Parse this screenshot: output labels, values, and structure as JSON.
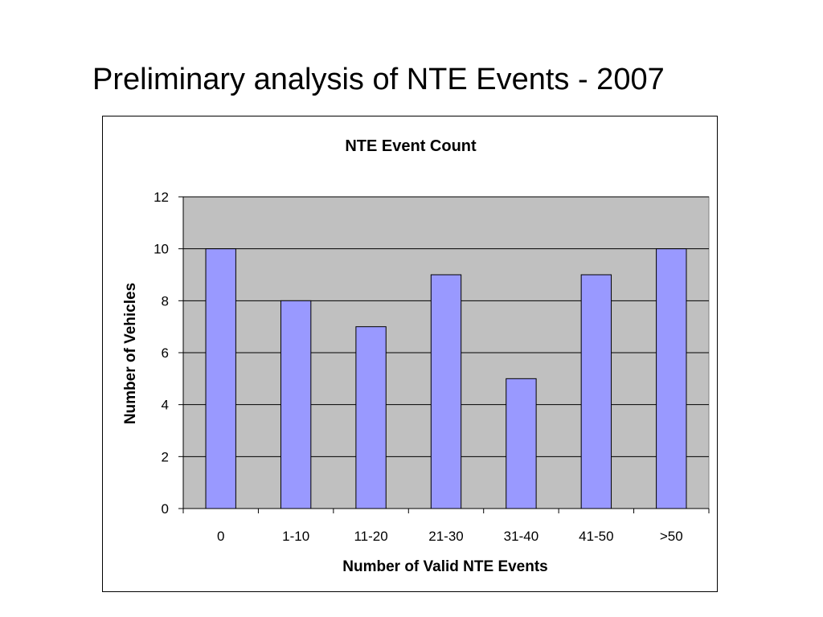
{
  "slide": {
    "title": "Preliminary analysis of NTE Events - 2007"
  },
  "chart_data": {
    "type": "bar",
    "title": "NTE Event Count",
    "xlabel": "Number of Valid NTE Events",
    "ylabel": "Number of Vehicles",
    "categories": [
      "0",
      "1-10",
      "11-20",
      "21-30",
      "31-40",
      "41-50",
      ">50"
    ],
    "values": [
      10,
      8,
      7,
      9,
      5,
      9,
      10
    ],
    "ylim": [
      0,
      12
    ],
    "yticks": [
      0,
      2,
      4,
      6,
      8,
      10,
      12
    ],
    "grid": true,
    "legend": "none",
    "colors": {
      "bar_fill": "#9999ff",
      "bar_stroke": "#000000",
      "plot_background": "#c0c0c0"
    }
  }
}
